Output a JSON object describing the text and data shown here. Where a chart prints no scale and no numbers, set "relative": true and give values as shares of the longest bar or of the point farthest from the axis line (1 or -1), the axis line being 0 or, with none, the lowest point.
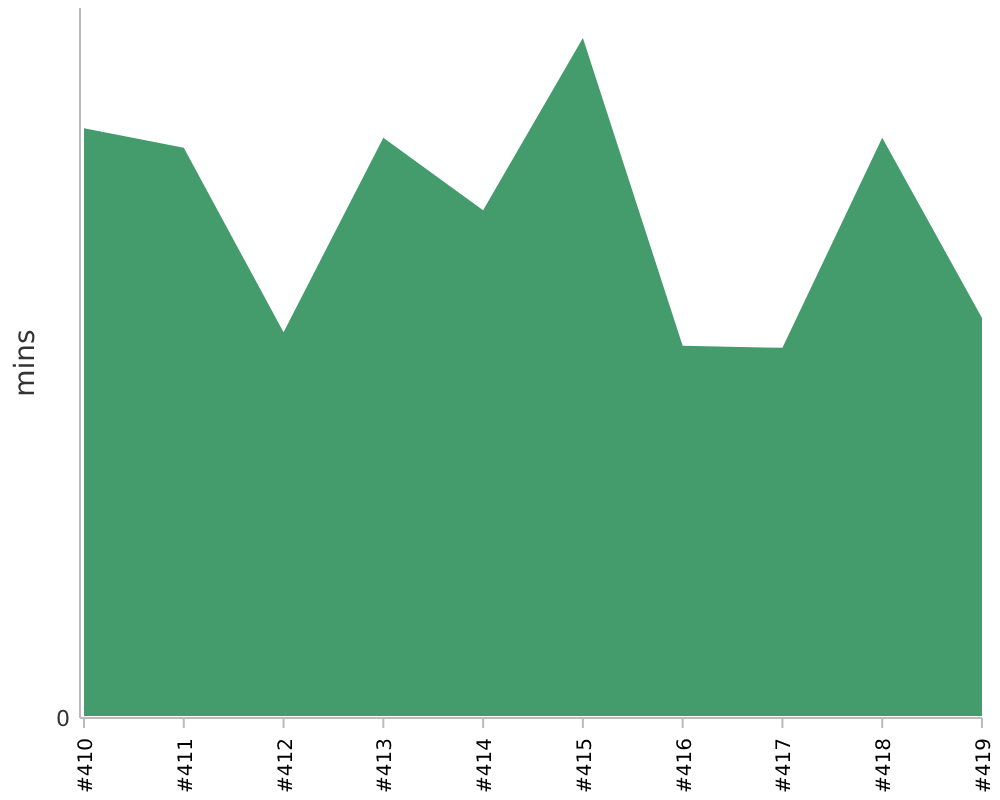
{
  "chart_data": {
    "type": "area",
    "relative": true,
    "ylabel": "mins",
    "color": "#449c6d",
    "categories": [
      "#410",
      "#411",
      "#412",
      "#413",
      "#414",
      "#415",
      "#416",
      "#417",
      "#418",
      "#419"
    ],
    "values": [
      0.867,
      0.838,
      0.566,
      0.853,
      0.746,
      1,
      0.546,
      0.543,
      0.853,
      0.587
    ],
    "annotations": [
      "0"
    ]
  }
}
